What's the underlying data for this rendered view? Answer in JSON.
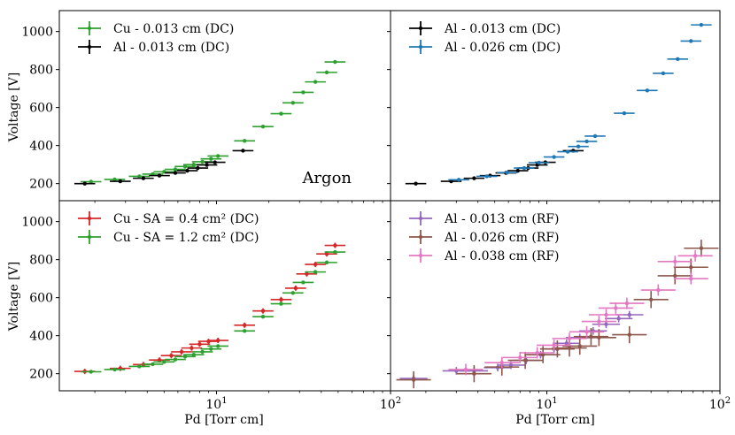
{
  "colors": {
    "green": "#2ca02c",
    "black": "#000000",
    "blue": "#1f77b4",
    "red": "#d62728",
    "purple": "#9467bd",
    "brown": "#8c564b",
    "pink": "#e377c2"
  },
  "labels": {
    "ylabel": "Voltage [V]",
    "xlabel": "Pd [Torr cm]",
    "annotation": "Argon"
  },
  "chart_data": [
    {
      "type": "scatter",
      "panel": "top-left",
      "xscale": "log",
      "xlim": [
        1.25,
        100
      ],
      "ylim": [
        110,
        1110
      ],
      "yticks": [
        200,
        400,
        600,
        800,
        1000
      ],
      "xticks": [
        {
          "v": 10,
          "base": "10",
          "exp": "1"
        },
        {
          "v": 100,
          "base": "10",
          "exp": "2"
        }
      ],
      "legend": "top-left",
      "annotation": "Argon",
      "series": [
        {
          "name": "Cu - 0.013 cm (DC)",
          "color": "green",
          "x": [
            1.9,
            2.6,
            3.6,
            4.3,
            5.0,
            5.8,
            6.6,
            7.4,
            8.3,
            9.3,
            10.2,
            14.5,
            18.5,
            23.5,
            27.5,
            31.5,
            37.0,
            43.0,
            48.0
          ],
          "y": [
            210,
            222,
            238,
            250,
            262,
            275,
            290,
            300,
            315,
            330,
            345,
            425,
            500,
            568,
            625,
            680,
            735,
            785,
            840
          ],
          "xerr": 0.06,
          "yerr": 6
        },
        {
          "name": "Al - 0.013 cm (DC)",
          "color": "black",
          "x": [
            1.75,
            2.8,
            3.8,
            4.7,
            5.8,
            6.8,
            7.8,
            8.8,
            9.8,
            14.2
          ],
          "y": [
            200,
            212,
            228,
            242,
            256,
            268,
            282,
            298,
            312,
            373
          ],
          "xerr": 0.06,
          "yerr": 6
        }
      ]
    },
    {
      "type": "scatter",
      "panel": "top-right",
      "xscale": "log",
      "xlim": [
        1.25,
        100
      ],
      "ylim": [
        110,
        1110
      ],
      "yticks": [
        200,
        400,
        600,
        800,
        1000
      ],
      "xticks": [
        {
          "v": 10,
          "base": "10",
          "exp": "1"
        },
        {
          "v": 100,
          "base": "10",
          "exp": "2"
        }
      ],
      "legend": "top-left",
      "series": [
        {
          "name": "Al - 0.013 cm (DC)",
          "color": "black",
          "x": [
            1.75,
            2.8,
            3.8,
            4.7,
            5.8,
            6.8,
            7.8,
            8.8,
            9.8,
            14.2
          ],
          "y": [
            200,
            212,
            228,
            242,
            256,
            268,
            282,
            298,
            312,
            373
          ],
          "xerr": 0.06,
          "yerr": 6
        },
        {
          "name": "Al - 0.026 cm (DC)",
          "color": "blue",
          "x": [
            3.1,
            4.5,
            5.9,
            7.4,
            9.0,
            11.0,
            13.2,
            15.2,
            17.0,
            19.0,
            28.0,
            38.0,
            47.0,
            57.0,
            68.0,
            78.0
          ],
          "y": [
            220,
            238,
            258,
            282,
            310,
            340,
            368,
            395,
            422,
            450,
            570,
            690,
            780,
            855,
            950,
            1035
          ],
          "xerr": 0.06,
          "yerr": 8
        }
      ]
    },
    {
      "type": "scatter",
      "panel": "bottom-left",
      "xscale": "log",
      "xlim": [
        1.25,
        100
      ],
      "ylim": [
        110,
        1110
      ],
      "yticks": [
        200,
        400,
        600,
        800,
        1000
      ],
      "xticks": [
        {
          "v": 10,
          "base": "10",
          "exp": "1"
        },
        {
          "v": 100,
          "base": "10",
          "exp": "2"
        }
      ],
      "xlabel": "Pd [Torr cm]",
      "legend": "top-left",
      "series": [
        {
          "name": "Cu - SA = 0.4 cm² (DC)",
          "color": "red",
          "x": [
            1.75,
            2.8,
            3.8,
            4.7,
            5.5,
            6.3,
            7.2,
            8.0,
            9.0,
            10.2,
            14.5,
            18.5,
            23.5,
            28.5,
            33.0,
            37.0,
            43.0,
            48.0
          ],
          "y": [
            212,
            228,
            248,
            272,
            295,
            315,
            335,
            355,
            370,
            375,
            455,
            530,
            590,
            650,
            725,
            775,
            830,
            875
          ],
          "xerr": 0.06,
          "yerr": 14
        },
        {
          "name": "Cu - SA = 1.2 cm² (DC)",
          "color": "green",
          "x": [
            1.9,
            2.6,
            3.6,
            4.3,
            5.0,
            5.8,
            6.6,
            7.4,
            8.3,
            9.3,
            10.2,
            14.5,
            18.5,
            23.5,
            27.5,
            31.5,
            37.0,
            43.0,
            48.0
          ],
          "y": [
            210,
            222,
            238,
            250,
            262,
            275,
            290,
            300,
            315,
            330,
            345,
            425,
            500,
            568,
            625,
            680,
            735,
            785,
            840
          ],
          "xerr": 0.06,
          "yerr": 6
        }
      ]
    },
    {
      "type": "scatter",
      "panel": "bottom-right",
      "xscale": "log",
      "xlim": [
        1.25,
        100
      ],
      "ylim": [
        110,
        1110
      ],
      "yticks": [
        200,
        400,
        600,
        800,
        1000
      ],
      "xticks": [
        {
          "v": 10,
          "base": "10",
          "exp": "1"
        },
        {
          "v": 100,
          "base": "10",
          "exp": "2"
        }
      ],
      "xlabel": "Pd [Torr cm]",
      "legend": "top-left",
      "series": [
        {
          "name": "Al - 0.013 cm (RF)",
          "color": "purple",
          "x": [
            1.7,
            3.0,
            3.8,
            5.2,
            6.2,
            7.6,
            9.2,
            11.0,
            13.0,
            15.5,
            18.5,
            22.0,
            26.0,
            30.0
          ],
          "y": [
            175,
            215,
            215,
            232,
            245,
            270,
            300,
            330,
            360,
            390,
            425,
            460,
            490,
            510
          ],
          "xerr": 0.08,
          "yerr": 20
        },
        {
          "name": "Al - 0.026 cm (RF)",
          "color": "brown",
          "x": [
            1.7,
            3.8,
            5.5,
            7.5,
            9.5,
            11.5,
            13.5,
            15.5,
            18.0,
            20.0,
            30.0,
            40.0,
            55.0,
            68.0,
            78.0
          ],
          "y": [
            168,
            200,
            235,
            270,
            300,
            330,
            335,
            345,
            395,
            390,
            405,
            590,
            715,
            760,
            860
          ],
          "xerr": 0.1,
          "yerr": 45
        },
        {
          "name": "Al - 0.038 cm (RF)",
          "color": "pink",
          "x": [
            3.4,
            5.5,
            7.0,
            8.8,
            11.0,
            13.5,
            17.0,
            20.0,
            22.0,
            25.0,
            29.0,
            44.0,
            55.0,
            68.0,
            72.0
          ],
          "y": [
            222,
            258,
            285,
            310,
            350,
            385,
            420,
            475,
            510,
            545,
            570,
            640,
            790,
            700,
            820
          ],
          "xerr": 0.1,
          "yerr": 30
        }
      ]
    }
  ]
}
